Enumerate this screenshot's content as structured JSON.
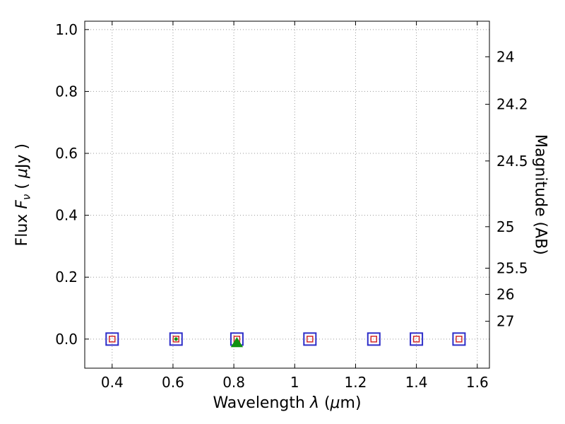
{
  "figure": {
    "background": "#ffffff"
  },
  "labels": {
    "xlabel": {
      "p1": "Wavelength  ",
      "p2": "λ",
      "p3": " (",
      "p4": "μ",
      "p5": "m)"
    },
    "ylabel_left": {
      "p1": "Flux  ",
      "p2": "F",
      "p3": "ν",
      "p4": " ( ",
      "p5": "μ",
      "p6": "Jy )"
    },
    "ylabel_right": "Magnitude (AB)"
  },
  "chart_data": {
    "type": "scatter",
    "title": "",
    "xlabel": "Wavelength λ (μm)",
    "ylabel": "Flux Fν ( μJy )",
    "ylabel_right": "Magnitude (AB)",
    "xlim": [
      0.31,
      1.64
    ],
    "ylim": [
      -0.094,
      1.027
    ],
    "xticks": [
      0.4,
      0.6,
      0.8,
      1.0,
      1.2,
      1.4,
      1.6
    ],
    "xtick_labels": [
      "0.4",
      "0.6",
      "0.8",
      "1",
      "1.2",
      "1.4",
      "1.6"
    ],
    "yticks_left": [
      0.0,
      0.2,
      0.4,
      0.6,
      0.8,
      1.0
    ],
    "ytick_left_labels": [
      "0.0",
      "0.2",
      "0.4",
      "0.6",
      "0.8",
      "1.0"
    ],
    "yticks_right_mag": [
      24,
      24.2,
      24.5,
      25,
      25.5,
      26,
      27
    ],
    "ytick_right_labels": [
      "24",
      "24.2",
      "24.5",
      "25",
      "25.5",
      "26",
      "27"
    ],
    "mag_zeropoint_uJy": 23.9,
    "grid": {
      "on": true,
      "style": "dotted",
      "color": "#9a9a9a"
    },
    "axis_color": "#000000",
    "legend": {
      "visible": false
    },
    "series": [
      {
        "name": "observed-photometry",
        "marker": "open-square",
        "color": "#2d2dc8",
        "size": 17,
        "edge_width": 2,
        "x": [
          0.4,
          0.61,
          0.81,
          1.05,
          1.26,
          1.4,
          1.54
        ],
        "y": [
          0.0,
          0.0,
          0.0,
          0.0,
          0.0,
          0.0,
          0.0
        ]
      },
      {
        "name": "model-photometry",
        "marker": "open-square",
        "color": "#d22a2a",
        "size": 8,
        "edge_width": 1.5,
        "x": [
          0.4,
          0.61,
          0.81,
          1.05,
          1.26,
          1.4,
          1.54
        ],
        "y": [
          0.0,
          0.0,
          0.0,
          0.0,
          0.0,
          0.0,
          0.0
        ]
      },
      {
        "name": "detection-triangle",
        "marker": "filled-triangle",
        "color": "#119111",
        "size": 13,
        "edge_width": 1,
        "x": [
          0.81
        ],
        "y": [
          -0.012
        ]
      },
      {
        "name": "detection-dot",
        "marker": "dot",
        "color": "#119111",
        "size": 5,
        "edge_width": 1,
        "x": [
          0.61
        ],
        "y": [
          0.0
        ]
      }
    ]
  }
}
